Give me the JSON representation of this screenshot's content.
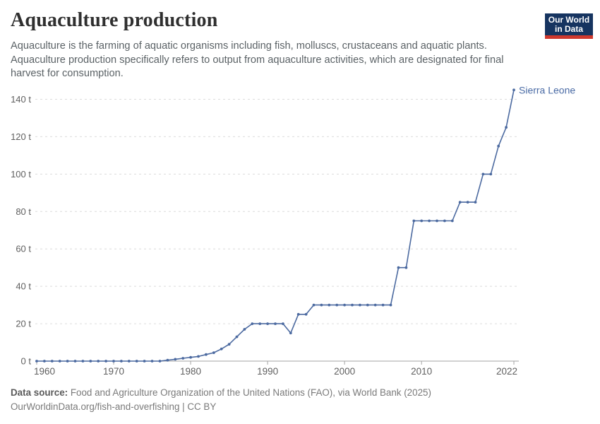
{
  "header": {
    "title": "Aquaculture production",
    "logo_line1": "Our World",
    "logo_line2": "in Data"
  },
  "subtitle": "Aquaculture is the farming of aquatic organisms including fish, molluscs, crustaceans and aquatic plants. Aquaculture production specifically refers to output from aquaculture activities, which are designated for final harvest for consumption.",
  "footer": {
    "source_label": "Data source:",
    "source_text": " Food and Agriculture Organization of the United Nations (FAO), via World Bank (2025)",
    "license_text": "OurWorldinData.org/fish-and-overfishing | CC BY"
  },
  "colors": {
    "line": "#4c6aa0",
    "entity_label": "#4a6ba5",
    "grid": "#dcdcdc",
    "axis": "#a3a3a3",
    "tick_text": "#5f5f5f",
    "logo_bg": "#163460",
    "logo_accent": "#cf382d"
  },
  "chart_data": {
    "type": "line",
    "title": "Aquaculture production",
    "entity": "Sierra Leone",
    "unit": "t",
    "xlabel": "",
    "ylabel": "",
    "ylim": [
      0,
      140
    ],
    "yticks": [
      0,
      20,
      40,
      60,
      80,
      100,
      120,
      140
    ],
    "ytick_suffix": " t",
    "xticks": [
      1960,
      1970,
      1980,
      1990,
      2000,
      2010,
      2022
    ],
    "grid": "dashed-horizontal",
    "legend_position": "end-of-line-label",
    "x": [
      1960,
      1961,
      1962,
      1963,
      1964,
      1965,
      1966,
      1967,
      1968,
      1969,
      1970,
      1971,
      1972,
      1973,
      1974,
      1975,
      1976,
      1977,
      1978,
      1979,
      1980,
      1981,
      1982,
      1983,
      1984,
      1985,
      1986,
      1987,
      1988,
      1989,
      1990,
      1991,
      1992,
      1993,
      1994,
      1995,
      1996,
      1997,
      1998,
      1999,
      2000,
      2001,
      2002,
      2003,
      2004,
      2005,
      2006,
      2007,
      2008,
      2009,
      2010,
      2011,
      2012,
      2013,
      2014,
      2015,
      2016,
      2017,
      2018,
      2019,
      2020,
      2021,
      2022
    ],
    "values": [
      0,
      0,
      0,
      0,
      0,
      0,
      0,
      0,
      0,
      0,
      0,
      0,
      0,
      0,
      0,
      0,
      0,
      0.5,
      1,
      1.5,
      2,
      2.5,
      3.5,
      4.5,
      6.5,
      9,
      13,
      17,
      20,
      20,
      20,
      20,
      20,
      15,
      25,
      25,
      30,
      30,
      30,
      30,
      30,
      30,
      30,
      30,
      30,
      30,
      30,
      50,
      50,
      75,
      75,
      75,
      75,
      75,
      75,
      85,
      85,
      85,
      100,
      100,
      115,
      125,
      145
    ]
  }
}
